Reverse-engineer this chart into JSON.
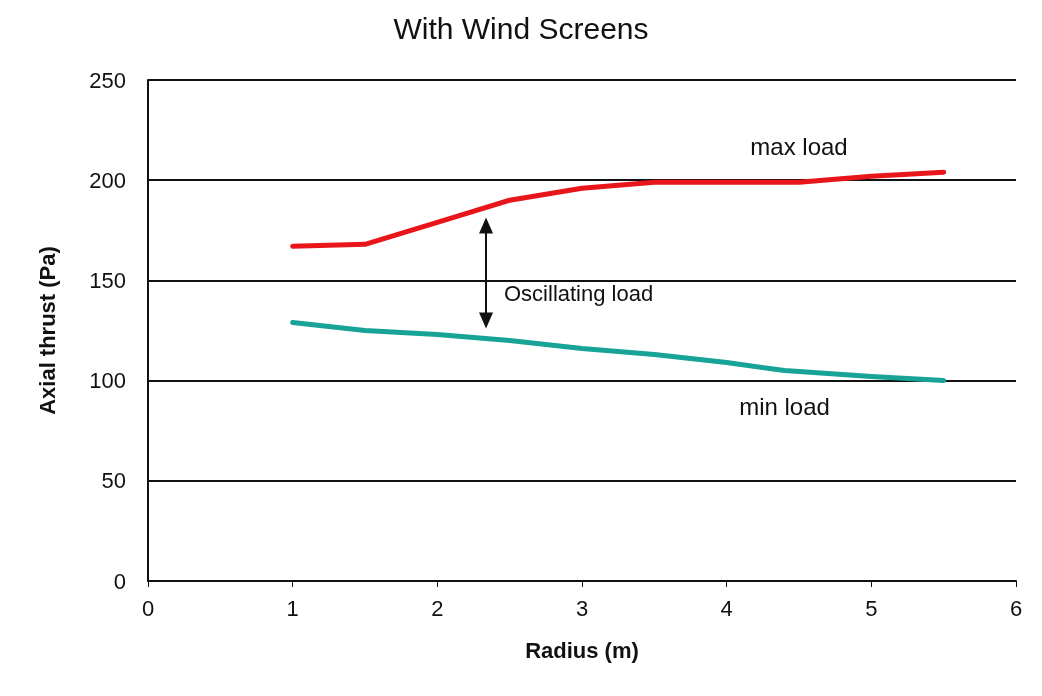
{
  "chart_data": {
    "type": "line",
    "title": "With Wind Screens",
    "xlabel": "Radius (m)",
    "ylabel": "Axial thrust (Pa)",
    "series": [
      {
        "name": "max load",
        "color": "#e8161b",
        "x": [
          1,
          1.5,
          2,
          2.5,
          3,
          3.5,
          4,
          4.5,
          5,
          5.5
        ],
        "values": [
          167,
          168,
          179,
          190,
          196,
          199,
          199,
          199,
          202,
          204
        ]
      },
      {
        "name": "min load",
        "color": "#17a396",
        "x": [
          1,
          1.5,
          2,
          2.5,
          3,
          3.5,
          4,
          4.4,
          5,
          5.5
        ],
        "values": [
          129,
          125,
          123,
          120,
          116,
          113,
          109,
          105,
          102,
          100
        ]
      }
    ],
    "annotations": [
      "Oscillating load"
    ],
    "xlim": [
      0,
      6
    ],
    "xticks": [
      0,
      1,
      2,
      3,
      4,
      5,
      6
    ],
    "ylim": [
      0,
      250
    ],
    "yticks": [
      0,
      50,
      100,
      150,
      200,
      250
    ],
    "grid": "y",
    "legend": false,
    "marker": "none",
    "line_style": "solid"
  }
}
